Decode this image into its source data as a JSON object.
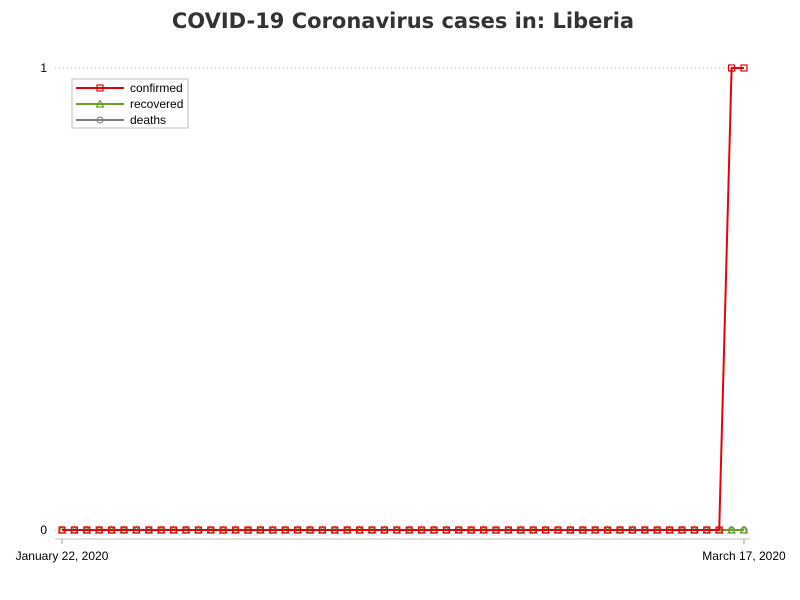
{
  "chart_data": {
    "type": "line",
    "title": "COVID-19 Coronavirus cases in: Liberia",
    "x": [
      "2020-01-22",
      "2020-01-23",
      "2020-01-24",
      "2020-01-25",
      "2020-01-26",
      "2020-01-27",
      "2020-01-28",
      "2020-01-29",
      "2020-01-30",
      "2020-01-31",
      "2020-02-01",
      "2020-02-02",
      "2020-02-03",
      "2020-02-04",
      "2020-02-05",
      "2020-02-06",
      "2020-02-07",
      "2020-02-08",
      "2020-02-09",
      "2020-02-10",
      "2020-02-11",
      "2020-02-12",
      "2020-02-13",
      "2020-02-14",
      "2020-02-15",
      "2020-02-16",
      "2020-02-17",
      "2020-02-18",
      "2020-02-19",
      "2020-02-20",
      "2020-02-21",
      "2020-02-22",
      "2020-02-23",
      "2020-02-24",
      "2020-02-25",
      "2020-02-26",
      "2020-02-27",
      "2020-02-28",
      "2020-02-29",
      "2020-03-01",
      "2020-03-02",
      "2020-03-03",
      "2020-03-04",
      "2020-03-05",
      "2020-03-06",
      "2020-03-07",
      "2020-03-08",
      "2020-03-09",
      "2020-03-10",
      "2020-03-11",
      "2020-03-12",
      "2020-03-13",
      "2020-03-14",
      "2020-03-15",
      "2020-03-16",
      "2020-03-17"
    ],
    "series": [
      {
        "name": "confirmed",
        "color": "#e8000b",
        "marker": "square",
        "values": [
          0,
          0,
          0,
          0,
          0,
          0,
          0,
          0,
          0,
          0,
          0,
          0,
          0,
          0,
          0,
          0,
          0,
          0,
          0,
          0,
          0,
          0,
          0,
          0,
          0,
          0,
          0,
          0,
          0,
          0,
          0,
          0,
          0,
          0,
          0,
          0,
          0,
          0,
          0,
          0,
          0,
          0,
          0,
          0,
          0,
          0,
          0,
          0,
          0,
          0,
          0,
          0,
          0,
          0,
          1,
          1
        ]
      },
      {
        "name": "recovered",
        "color": "#6aa121",
        "marker": "triangle",
        "values": [
          0,
          0,
          0,
          0,
          0,
          0,
          0,
          0,
          0,
          0,
          0,
          0,
          0,
          0,
          0,
          0,
          0,
          0,
          0,
          0,
          0,
          0,
          0,
          0,
          0,
          0,
          0,
          0,
          0,
          0,
          0,
          0,
          0,
          0,
          0,
          0,
          0,
          0,
          0,
          0,
          0,
          0,
          0,
          0,
          0,
          0,
          0,
          0,
          0,
          0,
          0,
          0,
          0,
          0,
          0,
          0
        ]
      },
      {
        "name": "deaths",
        "color": "#7f7f7f",
        "marker": "circle",
        "values": [
          0,
          0,
          0,
          0,
          0,
          0,
          0,
          0,
          0,
          0,
          0,
          0,
          0,
          0,
          0,
          0,
          0,
          0,
          0,
          0,
          0,
          0,
          0,
          0,
          0,
          0,
          0,
          0,
          0,
          0,
          0,
          0,
          0,
          0,
          0,
          0,
          0,
          0,
          0,
          0,
          0,
          0,
          0,
          0,
          0,
          0,
          0,
          0,
          0,
          0,
          0,
          0,
          0,
          0,
          0,
          0
        ]
      }
    ],
    "x_tick_labels": [
      {
        "index": 0,
        "label": "January 22, 2020"
      },
      {
        "index": 55,
        "label": "March 17, 2020"
      }
    ],
    "y_ticks": [
      0,
      1
    ],
    "ylim": [
      0,
      1
    ],
    "xlabel": "",
    "ylabel": "",
    "grid": "horizontal dotted",
    "legend_position": "top-left"
  }
}
